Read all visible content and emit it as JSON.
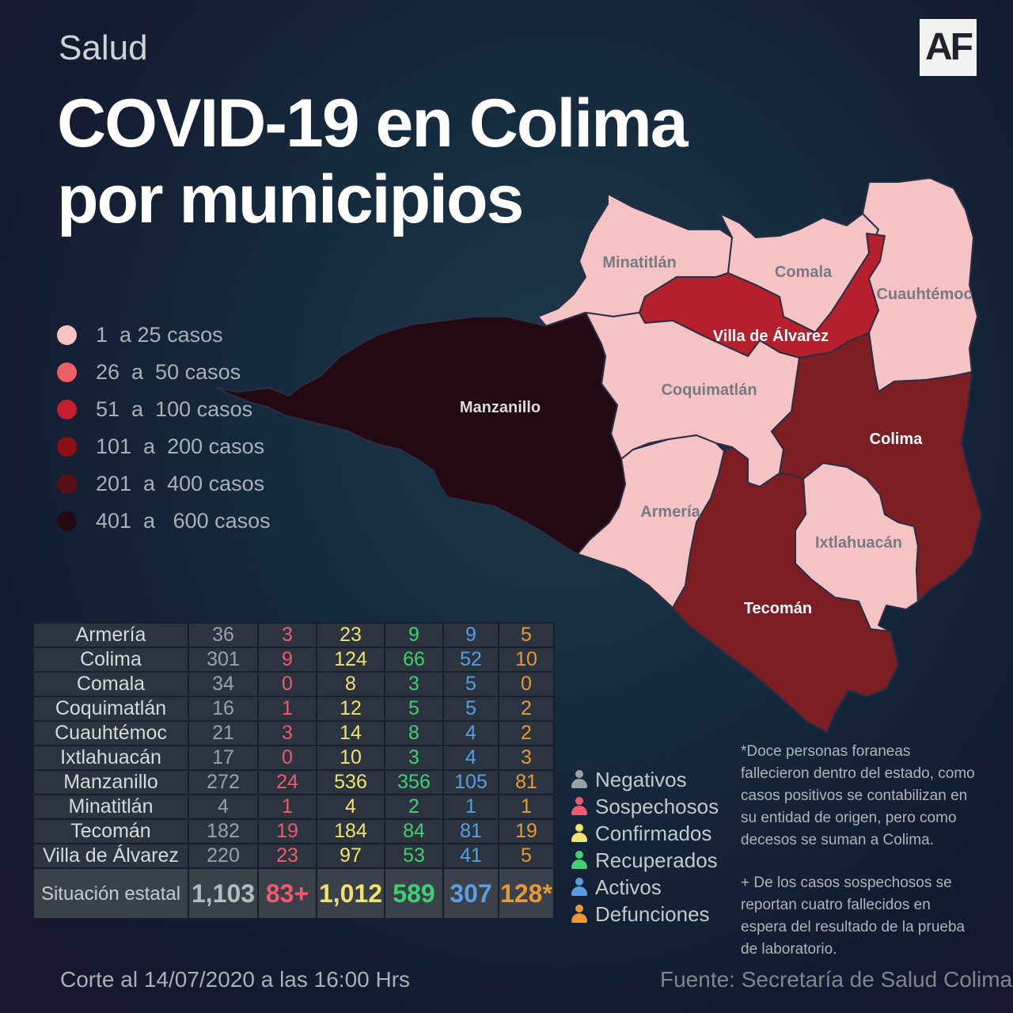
{
  "header": {
    "kicker": "Salud",
    "logo": "AF",
    "title_line1": "COVID-19 en Colima",
    "title_line2": "por municipios"
  },
  "colors": {
    "range_1_25": "#f6c3c4",
    "range_26_50": "#ec5f64",
    "range_51_100": "#c41f2c",
    "range_101_200": "#8e1014",
    "range_201_400": "#5b1016",
    "range_401_600": "#230a12",
    "map_fill_villa_de_alvarez": "#b5202c",
    "map_fill_colima_tecoman": "#7c1e22",
    "map_border": "#2a2f45"
  },
  "legend": [
    {
      "label": "1  a 25 casos",
      "color": "#f6c3c4"
    },
    {
      "label": "26  a  50 casos",
      "color": "#ec5f64"
    },
    {
      "label": "51  a  100 casos",
      "color": "#c41f2c"
    },
    {
      "label": "101  a  200 casos",
      "color": "#8e1014"
    },
    {
      "label": "201  a  400 casos",
      "color": "#5b1016"
    },
    {
      "label": "401  a   600 casos",
      "color": "#230a12"
    }
  ],
  "map_labels": {
    "minatitlan": "Minatitlán",
    "comala": "Comala",
    "cuauhtemoc": "Cuauhtémoc",
    "villa_de_alvarez": "Villa de Álvarez",
    "manzanillo": "Manzanillo",
    "coquimatlan": "Coquimatlán",
    "colima": "Colima",
    "armeria": "Armería",
    "ixtlahuacan": "Ixtlahuacán",
    "tecoman": "Tecomán"
  },
  "table": {
    "rows": [
      {
        "name": "Armería",
        "values": [
          "36",
          "3",
          "23",
          "9",
          "9",
          "5"
        ]
      },
      {
        "name": "Colima",
        "values": [
          "301",
          "9",
          "124",
          "66",
          "52",
          "10"
        ]
      },
      {
        "name": "Comala",
        "values": [
          "34",
          "0",
          "8",
          "3",
          "5",
          "0"
        ]
      },
      {
        "name": "Coquimatlán",
        "values": [
          "16",
          "1",
          "12",
          "5",
          "5",
          "2"
        ]
      },
      {
        "name": "Cuauhtémoc",
        "values": [
          "21",
          "3",
          "14",
          "8",
          "4",
          "2"
        ]
      },
      {
        "name": "Ixtlahuacán",
        "values": [
          "17",
          "0",
          "10",
          "3",
          "4",
          "3"
        ]
      },
      {
        "name": "Manzanillo",
        "values": [
          "272",
          "24",
          "536",
          "356",
          "105",
          "81"
        ]
      },
      {
        "name": "Minatitlán",
        "values": [
          "4",
          "1",
          "4",
          "2",
          "1",
          "1"
        ]
      },
      {
        "name": "Tecomán",
        "values": [
          "182",
          "19",
          "184",
          "84",
          "81",
          "19"
        ]
      },
      {
        "name": "Villa de Álvarez",
        "values": [
          "220",
          "23",
          "97",
          "53",
          "41",
          "5"
        ]
      }
    ],
    "total": {
      "name": "Situación estatal",
      "values": [
        "1,103",
        "83+",
        "1,012",
        "589",
        "307",
        "128*"
      ]
    }
  },
  "key": [
    {
      "label": "Negativos",
      "color": "#9aa1a8"
    },
    {
      "label": "Sospechosos",
      "color": "#f05a6e"
    },
    {
      "label": "Confirmados",
      "color": "#f1e36a"
    },
    {
      "label": "Recuperados",
      "color": "#3fd070"
    },
    {
      "label": "Activos",
      "color": "#5a9ee0"
    },
    {
      "label": "Defunciones",
      "color": "#e89a32"
    }
  ],
  "notes": {
    "note1": "*Doce personas foraneas fallecieron dentro del estado, como casos positivos se contabilizan en su entidad de origen, pero como decesos se suman a Colima.",
    "note2": "+ De los casos sospechosos se reportan cuatro fallecidos en espera del resultado de la prueba de laboratorio."
  },
  "footer": {
    "cut": "Corte al 14/07/2020 a las 16:00 Hrs",
    "source": "Fuente: Secretaría de Salud Colima"
  }
}
